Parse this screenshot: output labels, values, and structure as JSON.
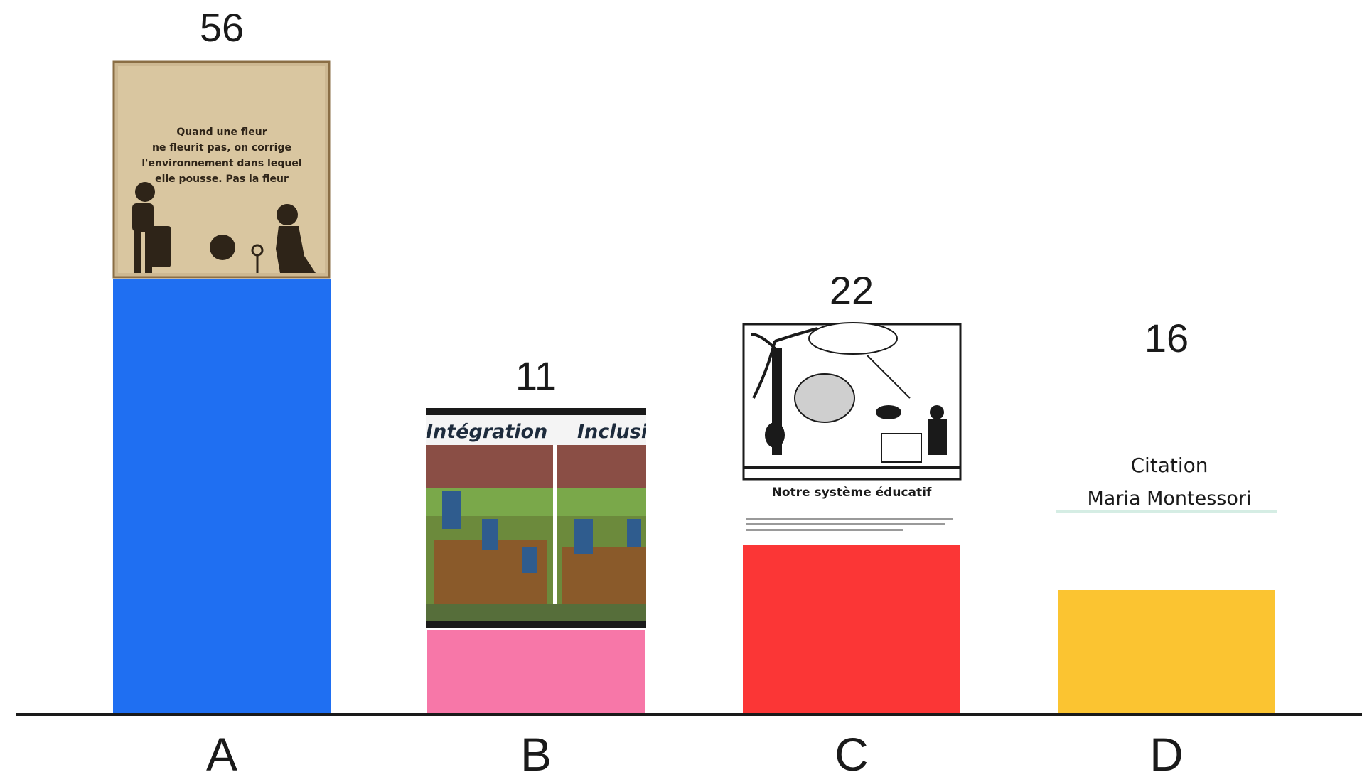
{
  "chart_data": {
    "type": "bar",
    "categories": [
      "A",
      "B",
      "C",
      "D"
    ],
    "values": [
      56,
      11,
      22,
      16
    ],
    "colors": [
      "#1f6ff2",
      "#f777a8",
      "#fb3636",
      "#fbc431"
    ],
    "ylim": [
      0,
      56
    ],
    "title": "",
    "xlabel": "",
    "ylabel": "",
    "grid": false
  },
  "pictures": {
    "A": {
      "quote": [
        "Quand une fleur",
        "ne fleurit pas, on corrige",
        "l'environnement dans lequel",
        "elle pousse. Pas la fleur"
      ]
    },
    "B": {
      "left_title": "Intégration",
      "right_title": "Inclusi"
    },
    "C": {
      "caption": "Notre système éducatif"
    },
    "D": {
      "line1": "Citation",
      "line2": "Maria Montessori"
    }
  }
}
